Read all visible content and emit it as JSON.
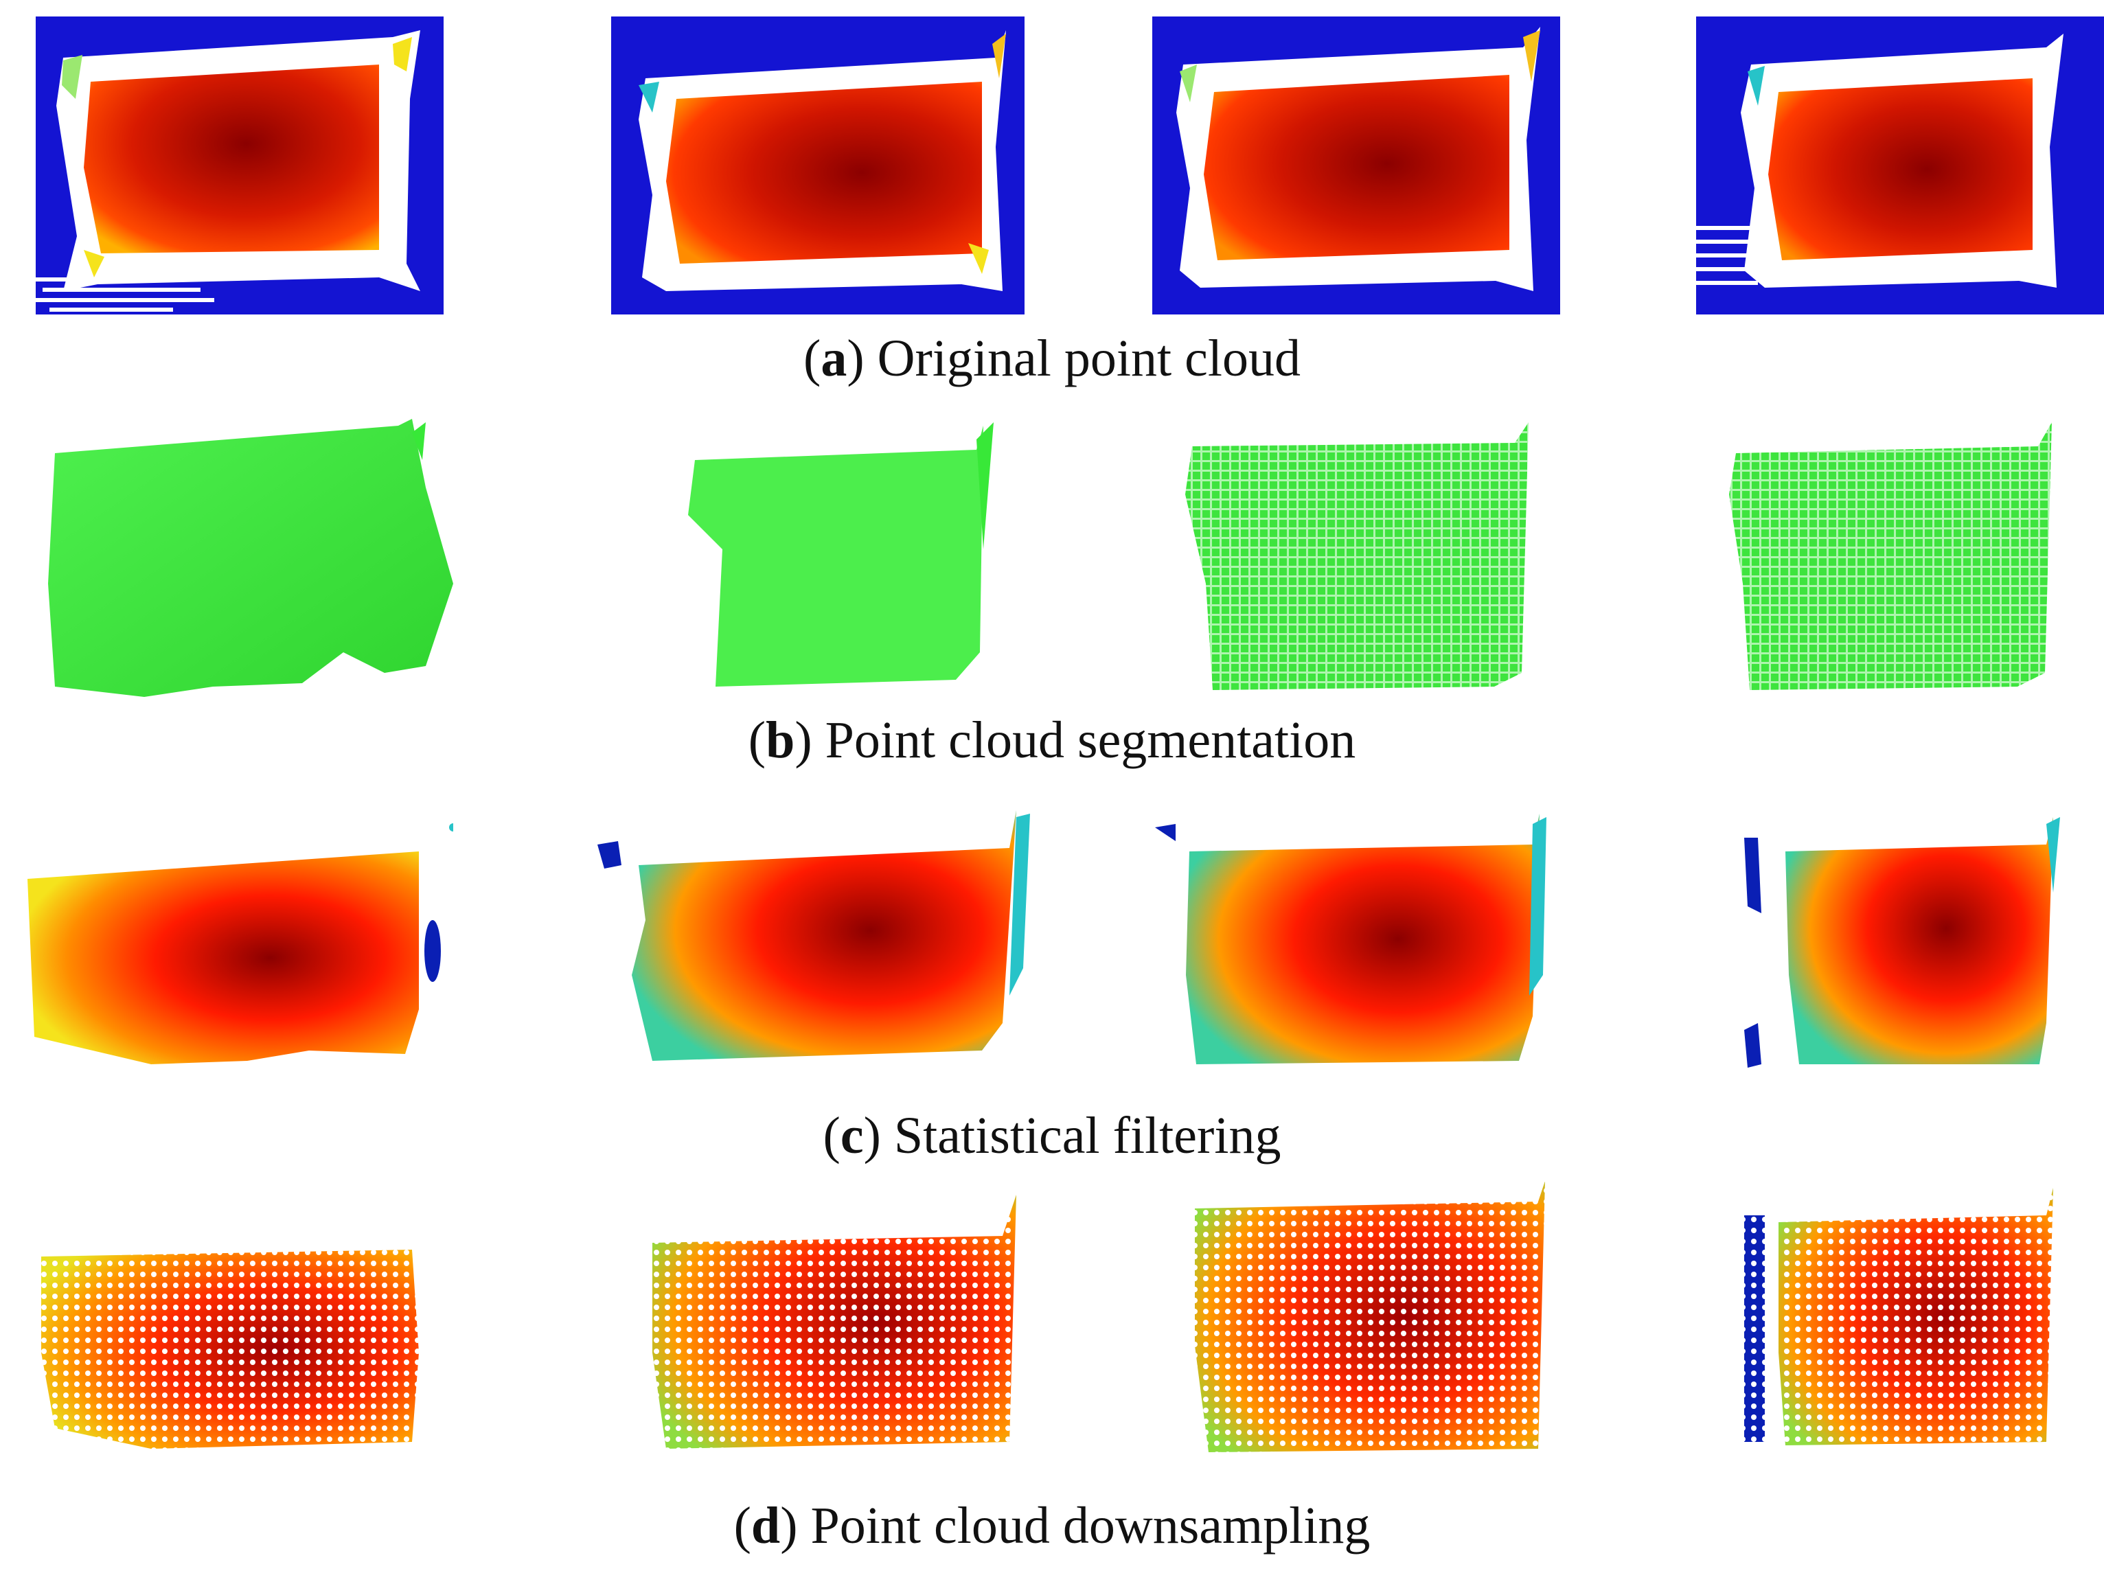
{
  "captions": {
    "a": {
      "letter": "a",
      "text": "Original point cloud"
    },
    "b": {
      "letter": "b",
      "text": "Point cloud segmentation"
    },
    "c": {
      "letter": "c",
      "text": "Statistical filtering"
    },
    "d": {
      "letter": "d",
      "text": "Point cloud downsampling"
    }
  },
  "colors": {
    "depth_background": "#1414d2",
    "segmentation_green": "#38e838",
    "depth_near": "#8b0000",
    "depth_mid": "#ff2a00",
    "depth_far": "#f5e31c",
    "depth_edge": "#27c3c8",
    "outlier_blue": "#0a1fb4"
  },
  "rows": [
    {
      "id": "a",
      "panel_count": 4,
      "style": "depth-map"
    },
    {
      "id": "b",
      "panel_count": 4,
      "style": "segmentation"
    },
    {
      "id": "c",
      "panel_count": 4,
      "style": "filtered-dense"
    },
    {
      "id": "d",
      "panel_count": 4,
      "style": "downsampled-points"
    }
  ]
}
